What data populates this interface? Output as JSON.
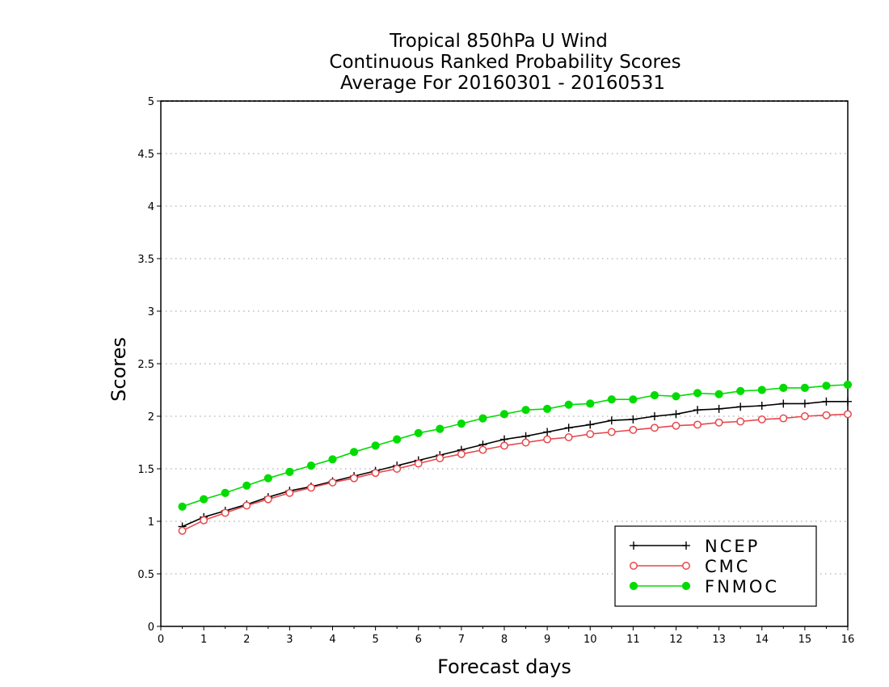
{
  "chart_data": {
    "type": "line",
    "title": [
      "Tropical 850hPa U Wind",
      "Continuous Ranked Probability Scores",
      "Average For 20160301 - 20160531"
    ],
    "xlabel": "Forecast days",
    "ylabel": "Scores",
    "xlim": [
      0,
      16
    ],
    "ylim": [
      0,
      5
    ],
    "x_ticks": [
      "0",
      "1",
      "2",
      "3",
      "4",
      "5",
      "6",
      "7",
      "8",
      "9",
      "10",
      "11",
      "12",
      "13",
      "14",
      "15",
      "16"
    ],
    "y_ticks": [
      "0",
      "0.5",
      "1",
      "1.5",
      "2",
      "2.5",
      "3",
      "3.5",
      "4",
      "4.5",
      "5"
    ],
    "grid": "horizontal dotted",
    "legend_position": "bottom-right",
    "x": [
      0.5,
      1,
      1.5,
      2,
      2.5,
      3,
      3.5,
      4,
      4.5,
      5,
      5.5,
      6,
      6.5,
      7,
      7.5,
      8,
      8.5,
      9,
      9.5,
      10,
      10.5,
      11,
      11.5,
      12,
      12.5,
      13,
      13.5,
      14,
      14.5,
      15,
      15.5,
      16
    ],
    "series": [
      {
        "name": "NCEP",
        "color": "#000000",
        "marker": "plus",
        "values": [
          0.95,
          1.04,
          1.1,
          1.16,
          1.23,
          1.29,
          1.33,
          1.38,
          1.43,
          1.48,
          1.53,
          1.58,
          1.63,
          1.68,
          1.73,
          1.78,
          1.81,
          1.85,
          1.89,
          1.92,
          1.96,
          1.97,
          2.0,
          2.02,
          2.06,
          2.07,
          2.09,
          2.1,
          2.12,
          2.12,
          2.14,
          2.14
        ]
      },
      {
        "name": "CMC",
        "color": "#e8474b",
        "marker": "open-circle",
        "values": [
          0.91,
          1.01,
          1.08,
          1.15,
          1.21,
          1.27,
          1.32,
          1.37,
          1.41,
          1.46,
          1.5,
          1.55,
          1.6,
          1.64,
          1.68,
          1.72,
          1.75,
          1.78,
          1.8,
          1.83,
          1.85,
          1.87,
          1.89,
          1.91,
          1.92,
          1.94,
          1.95,
          1.97,
          1.98,
          2.0,
          2.01,
          2.02
        ]
      },
      {
        "name": "FNMOC",
        "color": "#00dc00",
        "marker": "filled-circle",
        "values": [
          1.14,
          1.21,
          1.27,
          1.34,
          1.41,
          1.47,
          1.53,
          1.59,
          1.66,
          1.72,
          1.78,
          1.84,
          1.88,
          1.93,
          1.98,
          2.02,
          2.06,
          2.07,
          2.11,
          2.12,
          2.16,
          2.16,
          2.2,
          2.19,
          2.22,
          2.21,
          2.24,
          2.25,
          2.27,
          2.27,
          2.29,
          2.3
        ]
      }
    ]
  }
}
